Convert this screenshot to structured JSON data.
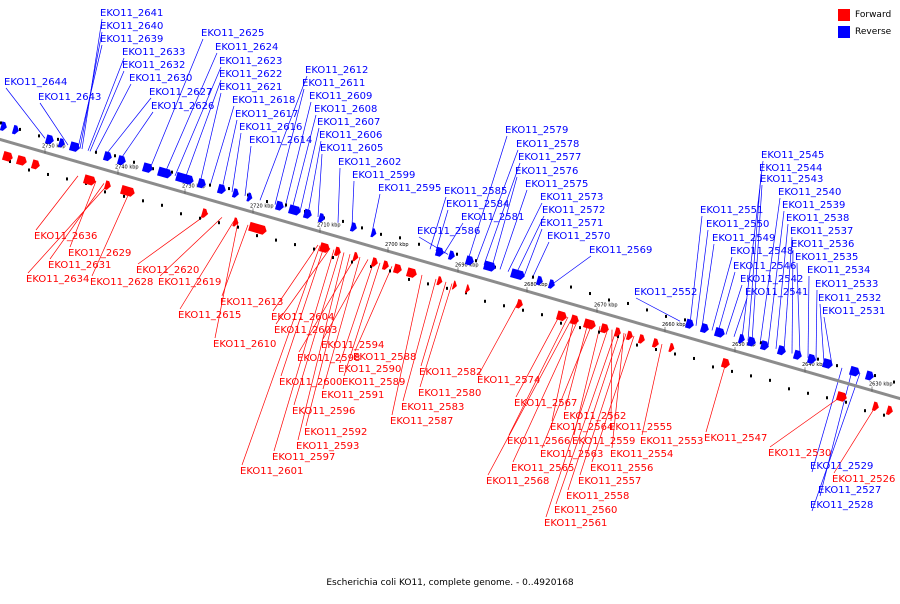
{
  "colors": {
    "forward": "#ff0000",
    "reverse": "#0000ff",
    "backbone": "#8c8c8c",
    "tick": "#000000"
  },
  "legend": {
    "forward": "Forward",
    "reverse": "Reverse"
  },
  "caption": "Escherichia coli KO11, complete genome. - 0..4920168",
  "ticks": [
    "2750 kbp",
    "2740 kbp",
    "2730 kbp",
    "2720 kbp",
    "2710 kbp",
    "2700 kbp",
    "2690 kbp",
    "2680 kbp",
    "2670 kbp",
    "2660 kbp",
    "2650 kbp",
    "2640 kbp",
    "2630 kbp"
  ],
  "forward_labels": [
    "EKO11_2636",
    "EKO11_2629",
    "EKO11_2631",
    "EKO11_2634",
    "EKO11_2628",
    "EKO11_2620",
    "EKO11_2619",
    "EKO11_2613",
    "EKO11_2615",
    "EKO11_2610",
    "EKO11_2604",
    "EKO11_2603",
    "EKO11_2594",
    "EKO11_2598",
    "EKO11_2588",
    "EKO11_2590",
    "EKO11_2600",
    "EKO11_2589",
    "EKO11_2591",
    "EKO11_2596",
    "EKO11_2592",
    "EKO11_2593",
    "EKO11_2597",
    "EKO11_2601",
    "EKO11_2582",
    "EKO11_2580",
    "EKO11_2583",
    "EKO11_2587",
    "EKO11_2574",
    "EKO11_2567",
    "EKO11_2564",
    "EKO11_2562",
    "EKO11_2555",
    "EKO11_2566",
    "EKO11_2559",
    "EKO11_2553",
    "EKO11_2563",
    "EKO11_2554",
    "EKO11_2565",
    "EKO11_2556",
    "EKO11_2568",
    "EKO11_2557",
    "EKO11_2558",
    "EKO11_2560",
    "EKO11_2561",
    "EKO11_2547",
    "EKO11_2530",
    "EKO11_2526"
  ],
  "reverse_labels": [
    "EKO11_2641",
    "EKO11_2640",
    "EKO11_2639",
    "EKO11_2633",
    "EKO11_2632",
    "EKO11_2630",
    "EKO11_2627",
    "EKO11_2626",
    "EKO11_2644",
    "EKO11_2643",
    "EKO11_2625",
    "EKO11_2624",
    "EKO11_2623",
    "EKO11_2622",
    "EKO11_2621",
    "EKO11_2618",
    "EKO11_2617",
    "EKO11_2616",
    "EKO11_2614",
    "EKO11_2612",
    "EKO11_2611",
    "EKO11_2609",
    "EKO11_2608",
    "EKO11_2607",
    "EKO11_2606",
    "EKO11_2605",
    "EKO11_2602",
    "EKO11_2599",
    "EKO11_2595",
    "EKO11_2579",
    "EKO11_2578",
    "EKO11_2577",
    "EKO11_2576",
    "EKO11_2575",
    "EKO11_2573",
    "EKO11_2572",
    "EKO11_2571",
    "EKO11_2570",
    "EKO11_2569",
    "EKO11_2585",
    "EKO11_2584",
    "EKO11_2581",
    "EKO11_2586",
    "EKO11_2551",
    "EKO11_2550",
    "EKO11_2549",
    "EKO11_2548",
    "EKO11_2546",
    "EKO11_2542",
    "EKO11_2541",
    "EKO11_2552",
    "EKO11_2545",
    "EKO11_2544",
    "EKO11_2543",
    "EKO11_2540",
    "EKO11_2539",
    "EKO11_2538",
    "EKO11_2537",
    "EKO11_2536",
    "EKO11_2535",
    "EKO11_2534",
    "EKO11_2533",
    "EKO11_2532",
    "EKO11_2531",
    "EKO11_2529",
    "EKO11_2527",
    "EKO11_2528"
  ]
}
